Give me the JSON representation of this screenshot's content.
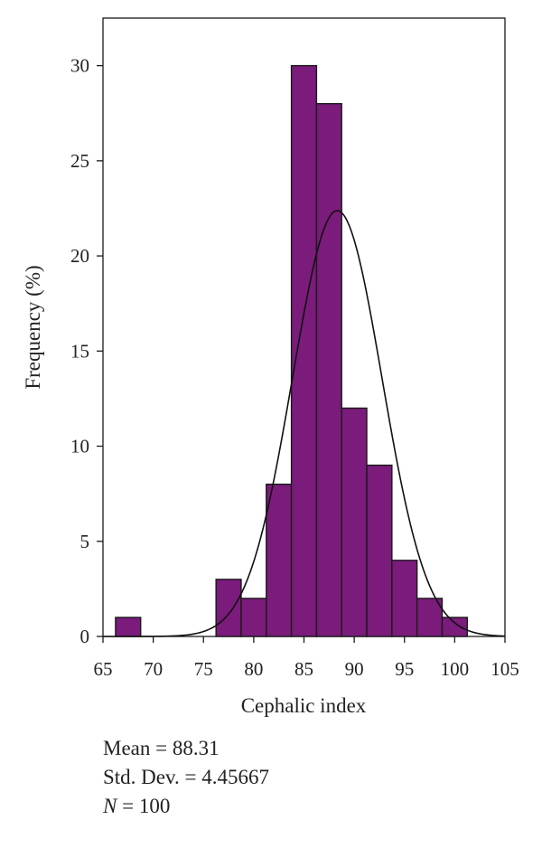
{
  "chart_data": {
    "type": "bar",
    "xlabel": "Cephalic index",
    "ylabel": "Frequency (%)",
    "xlim": [
      65,
      105
    ],
    "ylim": [
      0,
      32.5
    ],
    "x_ticks": [
      "65",
      "70",
      "75",
      "80",
      "85",
      "90",
      "95",
      "100",
      "105"
    ],
    "y_ticks": [
      "0",
      "5",
      "10",
      "15",
      "20",
      "25",
      "30"
    ],
    "bin_width": 2.5,
    "bars": [
      {
        "x": 67.5,
        "value": 1
      },
      {
        "x": 77.5,
        "value": 3
      },
      {
        "x": 80,
        "value": 2
      },
      {
        "x": 82.5,
        "value": 8
      },
      {
        "x": 85,
        "value": 30
      },
      {
        "x": 87.5,
        "value": 28
      },
      {
        "x": 90,
        "value": 12
      },
      {
        "x": 92.5,
        "value": 9
      },
      {
        "x": 95,
        "value": 4
      },
      {
        "x": 97.5,
        "value": 2
      },
      {
        "x": 100,
        "value": 1
      }
    ],
    "bar_color": "#7b1b7b",
    "bar_edge_color": "#1a1a1a",
    "normal_curve": {
      "mean": 88.31,
      "sd": 4.45667,
      "n": 100
    },
    "grid": false,
    "legend": "none"
  },
  "stats": {
    "mean": "Mean = 88.31",
    "sd": "Std. Dev. = 4.45667",
    "n_label": "N",
    "n_value": " = 100"
  }
}
